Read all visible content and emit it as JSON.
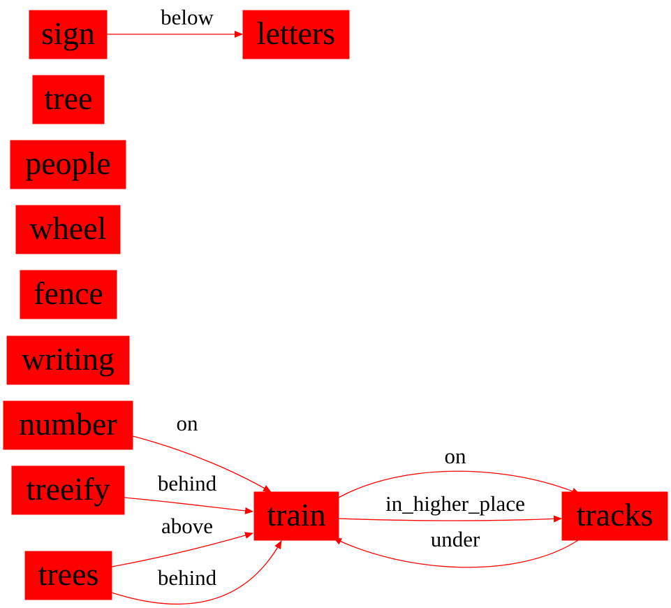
{
  "colors": {
    "node_fill": "#ff0000",
    "edge": "#ff0000",
    "text": "#000000",
    "background": "#ffffff"
  },
  "nodes": {
    "sign": "sign",
    "letters": "letters",
    "tree": "tree",
    "people": "people",
    "wheel": "wheel",
    "fence": "fence",
    "writing": "writing",
    "number": "number",
    "treeify": "treeify",
    "trees": "trees",
    "train": "train",
    "tracks": "tracks"
  },
  "edges": [
    {
      "from": "sign",
      "to": "letters",
      "label": "below"
    },
    {
      "from": "number",
      "to": "train",
      "label": "on"
    },
    {
      "from": "treeify",
      "to": "train",
      "label": "behind"
    },
    {
      "from": "trees",
      "to": "train",
      "label": "above"
    },
    {
      "from": "trees",
      "to": "train",
      "label": "behind"
    },
    {
      "from": "train",
      "to": "tracks",
      "label": "on"
    },
    {
      "from": "train",
      "to": "tracks",
      "label": "in_higher_place"
    },
    {
      "from": "tracks",
      "to": "train",
      "label": "under"
    }
  ]
}
